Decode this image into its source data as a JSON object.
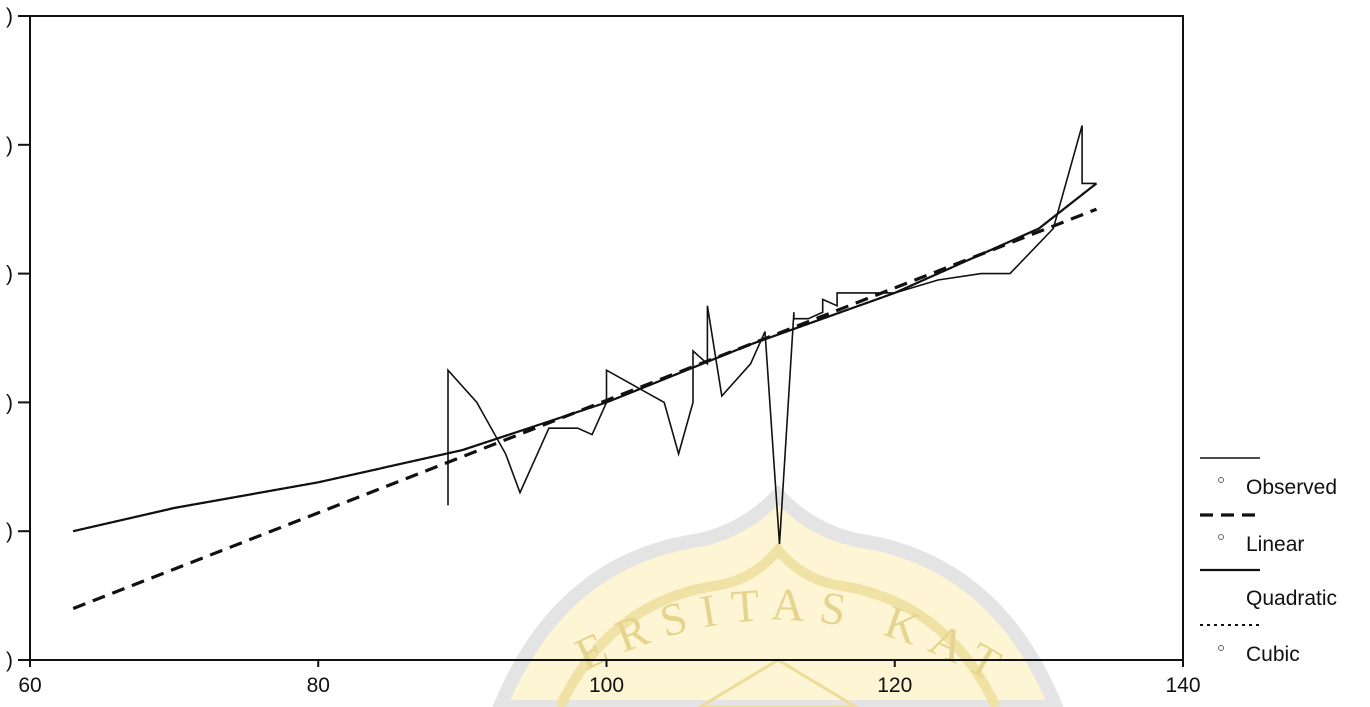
{
  "chart_data": {
    "type": "line",
    "title": "",
    "xlabel": "",
    "ylabel": "",
    "xlim": [
      60,
      140
    ],
    "ylim": [
      0,
      5
    ],
    "x_ticks": [
      60,
      80,
      100,
      120,
      140
    ],
    "x_tick_labels": [
      "60",
      "80",
      "100",
      "120",
      "140"
    ],
    "y_ticks": [
      0,
      1,
      2,
      3,
      4,
      5
    ],
    "y_tick_labels": [
      ")",
      ")",
      ")",
      ")",
      ")",
      ")"
    ],
    "grid": false,
    "legend_position": "right",
    "series": [
      {
        "name": "Observed",
        "style": "solid-thin",
        "x": [
          89,
          89,
          91,
          93,
          94,
          96,
          98,
          99,
          100,
          100,
          104,
          105,
          106,
          106,
          107,
          107,
          108,
          110,
          111,
          112,
          113,
          113,
          114,
          115,
          115,
          116,
          116,
          117,
          120,
          123,
          126,
          128,
          131,
          133,
          133,
          134
        ],
        "y": [
          1.2,
          2.25,
          2.0,
          1.6,
          1.3,
          1.8,
          1.8,
          1.75,
          2.0,
          2.25,
          2.0,
          1.6,
          2.0,
          2.4,
          2.3,
          2.75,
          2.05,
          2.3,
          2.55,
          0.9,
          2.7,
          2.65,
          2.65,
          2.7,
          2.8,
          2.75,
          2.85,
          2.85,
          2.85,
          2.95,
          3.0,
          3.0,
          3.35,
          4.15,
          3.7,
          3.7
        ]
      },
      {
        "name": "Linear",
        "style": "dashed",
        "x": [
          63,
          134
        ],
        "y": [
          0.4,
          3.5
        ]
      },
      {
        "name": "Quadratic",
        "style": "solid",
        "x": [
          63,
          70,
          80,
          90,
          100,
          110,
          120,
          130,
          134
        ],
        "y": [
          1.0,
          1.18,
          1.38,
          1.63,
          2.0,
          2.45,
          2.85,
          3.35,
          3.7
        ]
      },
      {
        "name": "Cubic",
        "style": "dotted",
        "x": [
          63,
          70,
          80,
          90,
          100,
          110,
          120,
          130,
          134
        ],
        "y": [
          1.0,
          1.18,
          1.38,
          1.63,
          2.0,
          2.45,
          2.85,
          3.35,
          3.7
        ]
      }
    ]
  },
  "legend": {
    "items": [
      {
        "label": "Observed",
        "style": "solid-thin"
      },
      {
        "label": "Linear",
        "style": "dashed"
      },
      {
        "label": "Quadratic",
        "style": "solid"
      },
      {
        "label": "Cubic",
        "style": "dotted"
      }
    ]
  },
  "watermark": {
    "text": "ERSITAS KAT",
    "color": "#f4e7b0",
    "ring_color": "#dcdcdc"
  },
  "colors": {
    "axis": "#111111",
    "line": "#111111",
    "background": "#ffffff"
  }
}
